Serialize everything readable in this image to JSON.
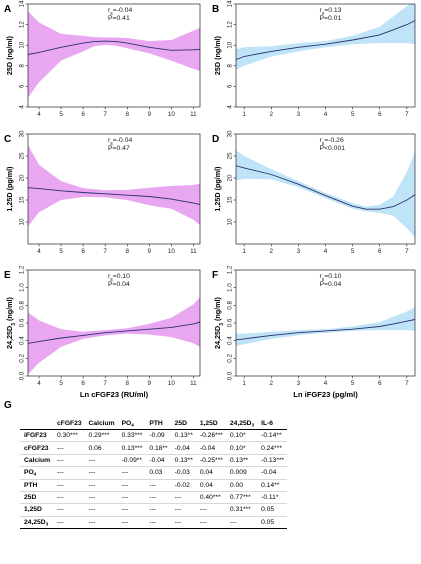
{
  "chart_data": [
    {
      "type": "line",
      "panel_label": "A",
      "color": "#e9a7f2",
      "ylabel": "25D (ng/ml)",
      "xlabel": "",
      "xlim": [
        3.5,
        11.3
      ],
      "ylim": [
        4,
        14
      ],
      "xticks": [
        "4",
        "5",
        "6",
        "7",
        "8",
        "9",
        "10",
        "11"
      ],
      "yticks": [
        "4",
        "6",
        "8",
        "10",
        "12",
        "14"
      ],
      "annotation_r": "-0.04",
      "annotation_p": "P=0.41",
      "x": [
        3.5,
        4,
        5,
        6,
        6.5,
        7,
        7.5,
        8,
        9,
        10,
        11,
        11.3
      ],
      "y": [
        9.1,
        9.3,
        9.8,
        10.2,
        10.35,
        10.4,
        10.35,
        10.2,
        9.8,
        9.5,
        9.55,
        9.6
      ],
      "lower": [
        4.9,
        6.4,
        8.5,
        9.4,
        9.9,
        10.05,
        9.95,
        9.7,
        9.2,
        8.5,
        7.7,
        7.5
      ],
      "upper": [
        13.3,
        12.2,
        11.1,
        10.9,
        10.8,
        10.75,
        10.75,
        10.7,
        10.4,
        10.5,
        11.4,
        11.7
      ]
    },
    {
      "type": "line",
      "panel_label": "B",
      "color": "#bfe4f7",
      "ylabel": "25D (ng/ml)",
      "xlabel": "",
      "xlim": [
        0.7,
        7.3
      ],
      "ylim": [
        4,
        14
      ],
      "xticks": [
        "1",
        "2",
        "3",
        "4",
        "5",
        "6",
        "7"
      ],
      "yticks": [
        "4",
        "6",
        "8",
        "10",
        "12",
        "14"
      ],
      "annotation_r": "0.13",
      "annotation_p": "P=0.01",
      "x": [
        0.7,
        1,
        2,
        3,
        4,
        5,
        6,
        6.5,
        7,
        7.3
      ],
      "y": [
        8.6,
        8.9,
        9.4,
        9.8,
        10.1,
        10.5,
        11.0,
        11.5,
        12.0,
        12.4
      ],
      "lower": [
        7.6,
        8.0,
        8.9,
        9.4,
        9.8,
        10.1,
        10.2,
        10.2,
        10.2,
        10.1
      ],
      "upper": [
        9.6,
        9.8,
        9.9,
        10.2,
        10.4,
        10.9,
        11.8,
        12.8,
        13.8,
        14.4
      ]
    },
    {
      "type": "line",
      "panel_label": "C",
      "color": "#e9a7f2",
      "ylabel": "1,25D (pg/ml)",
      "xlabel": "",
      "xlim": [
        3.5,
        11.3
      ],
      "ylim": [
        5,
        30
      ],
      "xticks": [
        "4",
        "5",
        "6",
        "7",
        "8",
        "9",
        "10",
        "11"
      ],
      "yticks": [
        "10",
        "15",
        "20",
        "25",
        "30"
      ],
      "annotation_r": "-0.04",
      "annotation_p": "P=0.47",
      "x": [
        3.5,
        4,
        5,
        6,
        7,
        8,
        9,
        10,
        11,
        11.3
      ],
      "y": [
        17.8,
        17.6,
        17.1,
        16.7,
        16.4,
        16.1,
        15.8,
        15.2,
        14.3,
        14.0
      ],
      "lower": [
        9.0,
        12.2,
        15.0,
        15.7,
        15.6,
        15.0,
        13.8,
        13.0,
        10.5,
        9.3
      ],
      "upper": [
        27.5,
        23.0,
        19.3,
        17.7,
        17.2,
        17.3,
        17.8,
        18.2,
        18.4,
        18.7
      ]
    },
    {
      "type": "line",
      "panel_label": "D",
      "color": "#bfe4f7",
      "ylabel": "1,25D (pg/ml)",
      "xlabel": "",
      "xlim": [
        0.7,
        7.3
      ],
      "ylim": [
        5,
        30
      ],
      "xticks": [
        "1",
        "2",
        "3",
        "4",
        "5",
        "6",
        "7"
      ],
      "yticks": [
        "10",
        "15",
        "20",
        "25",
        "30"
      ],
      "annotation_r": "-0.26",
      "annotation_p": "P<0.001",
      "x": [
        0.7,
        1,
        2,
        3,
        4,
        5,
        5.5,
        6,
        6.5,
        7,
        7.3
      ],
      "y": [
        22.8,
        22.3,
        20.8,
        18.6,
        16.0,
        13.6,
        12.9,
        12.9,
        13.5,
        15.0,
        16.2
      ],
      "lower": [
        19.5,
        19.8,
        19.7,
        17.9,
        15.4,
        13.0,
        12.4,
        12.1,
        11.4,
        8.6,
        6.5
      ],
      "upper": [
        26.3,
        25.0,
        22.0,
        19.3,
        16.6,
        14.3,
        13.5,
        13.9,
        15.8,
        21.4,
        26.0
      ]
    },
    {
      "type": "line",
      "panel_label": "E",
      "color": "#e9a7f2",
      "ylabel": "24,25D3 (ng/ml)",
      "xlabel": "Ln cFGF23 (RU/ml)",
      "xlim": [
        3.5,
        11.3
      ],
      "ylim": [
        0,
        1.2
      ],
      "xticks": [
        "4",
        "5",
        "6",
        "7",
        "8",
        "9",
        "10",
        "11"
      ],
      "yticks": [
        "0.0",
        "0.2",
        "0.4",
        "0.6",
        "0.8",
        "1.0",
        "1.2"
      ],
      "annotation_r": "0.10",
      "annotation_p": "P=0.04",
      "x": [
        3.5,
        4,
        5,
        6,
        7,
        8,
        9,
        10,
        11,
        11.3
      ],
      "y": [
        0.37,
        0.39,
        0.43,
        0.46,
        0.49,
        0.51,
        0.53,
        0.55,
        0.59,
        0.61
      ],
      "lower": [
        0.02,
        0.15,
        0.33,
        0.42,
        0.46,
        0.48,
        0.47,
        0.44,
        0.37,
        0.33
      ],
      "upper": [
        0.72,
        0.63,
        0.53,
        0.5,
        0.52,
        0.54,
        0.59,
        0.66,
        0.81,
        0.89
      ]
    },
    {
      "type": "line",
      "panel_label": "F",
      "color": "#bfe4f7",
      "ylabel": "24,25D3 (ng/ml)",
      "xlabel": "Ln iFGF23 (pg/ml)",
      "xlim": [
        0.7,
        7.3
      ],
      "ylim": [
        0,
        1.2
      ],
      "xticks": [
        "1",
        "2",
        "3",
        "4",
        "5",
        "6",
        "7"
      ],
      "yticks": [
        "0.0",
        "0.2",
        "0.4",
        "0.6",
        "0.8",
        "1.0",
        "1.2"
      ],
      "annotation_r": "0.10",
      "annotation_p": "P=0.04",
      "x": [
        0.7,
        1,
        2,
        3,
        4,
        5,
        6,
        6.5,
        7,
        7.3
      ],
      "y": [
        0.41,
        0.42,
        0.46,
        0.49,
        0.51,
        0.53,
        0.56,
        0.59,
        0.62,
        0.64
      ],
      "lower": [
        0.34,
        0.36,
        0.42,
        0.46,
        0.49,
        0.51,
        0.52,
        0.52,
        0.52,
        0.51
      ],
      "upper": [
        0.48,
        0.48,
        0.5,
        0.52,
        0.53,
        0.56,
        0.61,
        0.67,
        0.73,
        0.78
      ]
    }
  ],
  "table": {
    "label": "G",
    "headers": [
      "",
      "cFGF23",
      "Calcium",
      "PO4",
      "PTH",
      "25D",
      "1,25D",
      "24,25D3",
      "IL-6"
    ],
    "rows": [
      [
        "iFGF23",
        "0.30***",
        "0.29***",
        "0.33***",
        "-0.09",
        "0.13**",
        "-0.26***",
        "0.10*",
        "-0.14**"
      ],
      [
        "cFGF23",
        "---",
        "0.06",
        "0.13***",
        "0.18**",
        "-0.04",
        "-0.04",
        "0.10*",
        "0.24***"
      ],
      [
        "Calcium",
        "---",
        "---",
        "-0.09**",
        "-0.04",
        "0.13**",
        "-0.25***",
        "0.13**",
        "-0.13***"
      ],
      [
        "PO4",
        "---",
        "---",
        "---",
        "0.03",
        "-0.03",
        "0.04",
        "0.009",
        "-0.04"
      ],
      [
        "PTH",
        "---",
        "---",
        "---",
        "---",
        "-0.02",
        "0.04",
        "0.00",
        "0.14**"
      ],
      [
        "25D",
        "---",
        "---",
        "---",
        "---",
        "---",
        "0.40***",
        "0.77***",
        "-0.11*"
      ],
      [
        "1,25D",
        "---",
        "---",
        "---",
        "---",
        "---",
        "---",
        "0.31***",
        "0.05"
      ],
      [
        "24,25D3",
        "---",
        "---",
        "---",
        "---",
        "---",
        "---",
        "---",
        "0.05"
      ]
    ]
  }
}
